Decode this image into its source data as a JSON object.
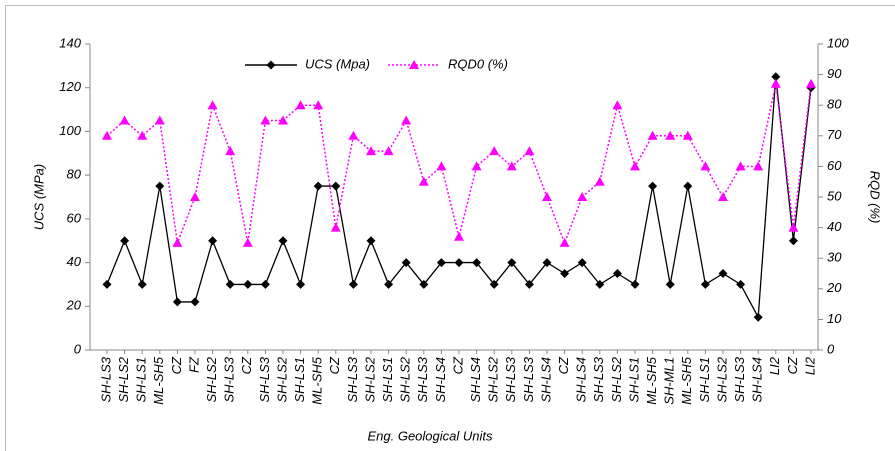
{
  "chart_data": {
    "type": "line",
    "xlabel": "Eng. Geological Units",
    "ylabel": "UCS (MPa)",
    "y2label": "RQD (%)",
    "categories": [
      "SH-LS3",
      "SH-LS2",
      "SH-LS1",
      "ML-SH5",
      "CZ",
      "FZ",
      "SH-LS2",
      "SH-LS3",
      "CZ",
      "SH-LS3",
      "SH-LS2",
      "SH-LS1",
      "ML-SH5",
      "CZ",
      "SH-LS3",
      "SH-LS2",
      "SH-LS1",
      "SH-LS2",
      "SH-LS3",
      "SH-LS4",
      "CZ",
      "SH-LS4",
      "SH-LS2",
      "SH-LS3",
      "SH-LS3",
      "SH-LS4",
      "CZ",
      "SH-LS4",
      "SH-LS3",
      "SH-LS2",
      "SH-LS1",
      "ML-SH5",
      "SH-ML1",
      "ML-SH5",
      "SH-LS1",
      "SH-LS2",
      "SH-LS3",
      "SH-LS4",
      "LI2",
      "CZ",
      "LI2"
    ],
    "series": [
      {
        "name": "UCS (Mpa)",
        "color": "#000000",
        "marker": "diamond",
        "dash": "solid",
        "values": [
          30,
          50,
          30,
          75,
          22,
          22,
          50,
          30,
          30,
          30,
          50,
          30,
          75,
          75,
          30,
          50,
          30,
          40,
          30,
          40,
          40,
          40,
          30,
          40,
          30,
          40,
          35,
          40,
          30,
          35,
          30,
          75,
          30,
          75,
          30,
          35,
          30,
          15,
          125,
          50,
          120
        ]
      },
      {
        "name": "RQD0 (%)",
        "color": "#ff00ff",
        "marker": "triangle",
        "dash": "dotted",
        "axis": "y2",
        "values": [
          70,
          75,
          70,
          75,
          35,
          50,
          80,
          65,
          35,
          75,
          75,
          80,
          80,
          40,
          70,
          65,
          65,
          75,
          55,
          60,
          37,
          60,
          65,
          60,
          65,
          50,
          35,
          50,
          55,
          80,
          60,
          70,
          70,
          70,
          60,
          50,
          60,
          60,
          87,
          40,
          87
        ]
      }
    ],
    "ylim": [
      0,
      140
    ],
    "yticks": [
      0,
      20,
      40,
      60,
      80,
      100,
      120,
      140
    ],
    "y2lim": [
      0,
      100
    ],
    "y2ticks": [
      0,
      10,
      20,
      30,
      40,
      50,
      60,
      70,
      80,
      90,
      100
    ],
    "grid": false,
    "legend": "top"
  }
}
